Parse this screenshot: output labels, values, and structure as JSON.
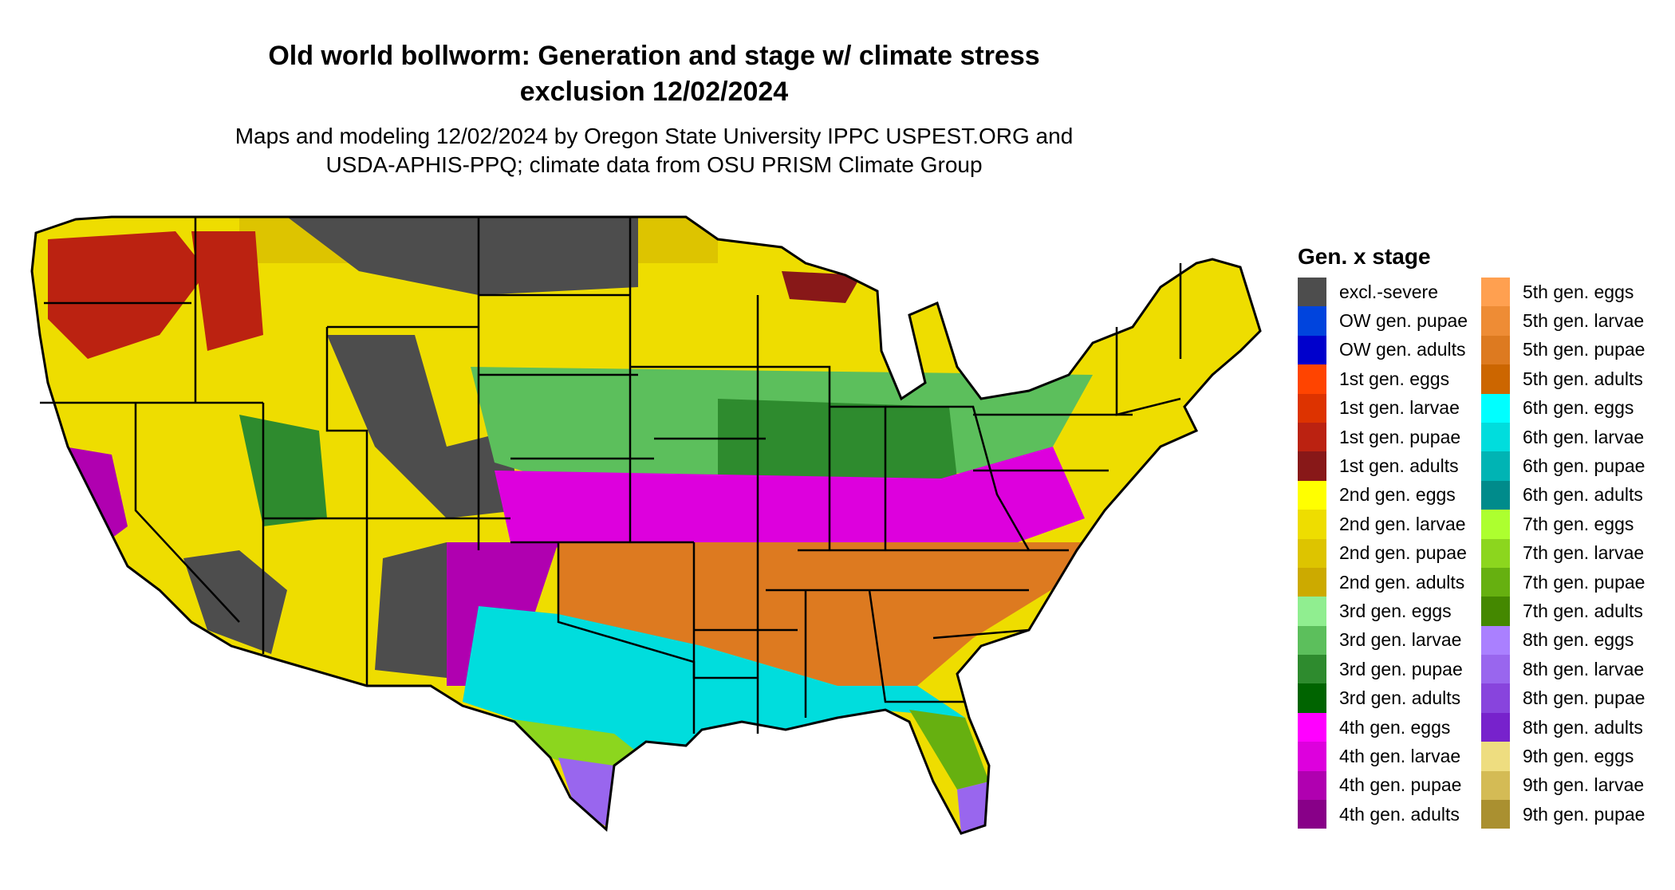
{
  "title_line1": "Old world bollworm: Generation and stage w/ climate stress",
  "title_line2": "exclusion 12/02/2024",
  "subtitle_line1": "Maps and modeling 12/02/2024 by Oregon State University IPPC USPEST.ORG and",
  "subtitle_line2": "USDA-APHIS-PPQ; climate data from OSU PRISM Climate Group",
  "legend": {
    "title": "Gen. x stage",
    "columns": [
      [
        {
          "label": "excl.-severe",
          "color": "#4d4d4d"
        },
        {
          "label": "OW gen. pupae",
          "color": "#0044dd"
        },
        {
          "label": "OW gen. adults",
          "color": "#0000cc"
        },
        {
          "label": "1st gen. eggs",
          "color": "#ff4400"
        },
        {
          "label": "1st gen. larvae",
          "color": "#dd3300"
        },
        {
          "label": "1st gen. pupae",
          "color": "#bb2211"
        },
        {
          "label": "1st gen. adults",
          "color": "#881818"
        },
        {
          "label": "2nd gen. eggs",
          "color": "#ffff00"
        },
        {
          "label": "2nd gen. larvae",
          "color": "#eedd00"
        },
        {
          "label": "2nd gen. pupae",
          "color": "#ddc400"
        },
        {
          "label": "2nd gen. adults",
          "color": "#ccaa00"
        },
        {
          "label": "3rd gen. eggs",
          "color": "#90ee90"
        },
        {
          "label": "3rd gen. larvae",
          "color": "#5cbf5c"
        },
        {
          "label": "3rd gen. pupae",
          "color": "#2e8b2e"
        },
        {
          "label": "3rd gen. adults",
          "color": "#006400"
        },
        {
          "label": "4th gen. eggs",
          "color": "#ff00ff"
        },
        {
          "label": "4th gen. larvae",
          "color": "#dd00dd"
        },
        {
          "label": "4th gen. pupae",
          "color": "#b000b0"
        },
        {
          "label": "4th gen. adults",
          "color": "#880088"
        }
      ],
      [
        {
          "label": "5th gen. eggs",
          "color": "#ffa050"
        },
        {
          "label": "5th gen. larvae",
          "color": "#ee8c35"
        },
        {
          "label": "5th gen. pupae",
          "color": "#dd7a20"
        },
        {
          "label": "5th gen. adults",
          "color": "#cc6600"
        },
        {
          "label": "6th gen. eggs",
          "color": "#00ffff"
        },
        {
          "label": "6th gen. larvae",
          "color": "#00dddd"
        },
        {
          "label": "6th gen. pupae",
          "color": "#00b4b4"
        },
        {
          "label": "6th gen. adults",
          "color": "#008b8b"
        },
        {
          "label": "7th gen. eggs",
          "color": "#adff2f"
        },
        {
          "label": "7th gen. larvae",
          "color": "#8cd61e"
        },
        {
          "label": "7th gen. pupae",
          "color": "#66b010"
        },
        {
          "label": "7th gen. adults",
          "color": "#448800"
        },
        {
          "label": "8th gen. eggs",
          "color": "#aa80ff"
        },
        {
          "label": "8th gen. larvae",
          "color": "#9966ee"
        },
        {
          "label": "8th gen. pupae",
          "color": "#8844dd"
        },
        {
          "label": "8th gen. adults",
          "color": "#7722cc"
        },
        {
          "label": "9th gen. eggs",
          "color": "#eedd80"
        },
        {
          "label": "9th gen. larvae",
          "color": "#d4bb55"
        },
        {
          "label": "9th gen. pupae",
          "color": "#aa9030"
        }
      ]
    ]
  }
}
